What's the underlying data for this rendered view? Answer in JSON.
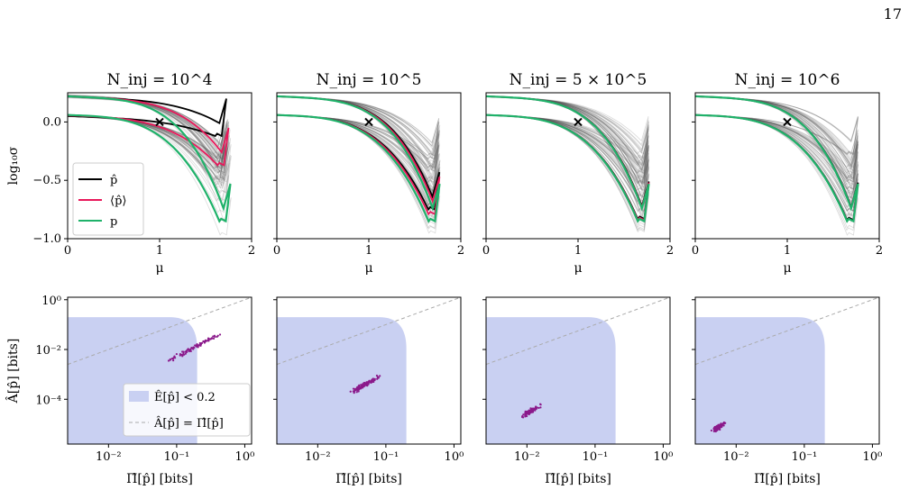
{
  "page_number": "17",
  "chart_data": [
    {
      "type": "line",
      "title": "N_inj = 10^4",
      "xlabel": "μ",
      "ylabel": "log₁₀σ",
      "xlim": [
        0,
        2
      ],
      "ylim": [
        -1.0,
        0.25
      ],
      "x_ticks": [
        "0",
        "1",
        "2"
      ],
      "y_ticks": [
        "0.0",
        "−0.5",
        "−1.0"
      ],
      "marker": {
        "x": 1.0,
        "y": 0.0,
        "symbol": "×"
      },
      "series": [
        {
          "name": "p̂",
          "color": "#000000",
          "spread": 0.55,
          "tipY": -0.15
        },
        {
          "name": "⟨p̂⟩",
          "color": "#e8185a",
          "spread": 0.8,
          "tipY": -0.4
        },
        {
          "name": "p",
          "color": "#1fb26a",
          "spread": 1.0,
          "tipY": -0.88
        }
      ],
      "legend": {
        "position": "lower-left"
      },
      "samples_spread": [
        0.3,
        1.1
      ]
    },
    {
      "type": "line",
      "title": "N_inj = 10^5",
      "xlabel": "μ",
      "xlim": [
        0,
        2
      ],
      "ylim": [
        -1.0,
        0.25
      ],
      "x_ticks": [
        "0",
        "1",
        "2"
      ],
      "marker": {
        "x": 1.0,
        "y": 0.0,
        "symbol": "×"
      },
      "series": [
        {
          "color": "#000000",
          "spread": 0.97,
          "tipY": -0.78
        },
        {
          "color": "#e8185a",
          "spread": 0.99,
          "tipY": -0.82
        },
        {
          "color": "#1fb26a",
          "spread": 1.0,
          "tipY": -0.88
        }
      ],
      "samples_spread": [
        0.85,
        1.05
      ]
    },
    {
      "type": "line",
      "title": "N_inj = 5 × 10^5",
      "xlabel": "μ",
      "xlim": [
        0,
        2
      ],
      "ylim": [
        -1.0,
        0.25
      ],
      "x_ticks": [
        "0",
        "1",
        "2"
      ],
      "marker": {
        "x": 1.0,
        "y": 0.0,
        "symbol": "×"
      },
      "series": [
        {
          "color": "#000000",
          "spread": 0.995,
          "tipY": -0.86
        },
        {
          "color": "#e8185a",
          "spread": 1.0,
          "tipY": -0.87
        },
        {
          "color": "#1fb26a",
          "spread": 1.0,
          "tipY": -0.88
        }
      ],
      "samples_spread": [
        0.93,
        1.03
      ]
    },
    {
      "type": "line",
      "title": "N_inj = 10^6",
      "xlabel": "μ",
      "xlim": [
        0,
        2
      ],
      "ylim": [
        -1.0,
        0.25
      ],
      "x_ticks": [
        "0",
        "1",
        "2"
      ],
      "marker": {
        "x": 1.0,
        "y": 0.0,
        "symbol": "×"
      },
      "series": [
        {
          "color": "#000000",
          "spread": 1.0,
          "tipY": -0.87
        },
        {
          "color": "#e8185a",
          "spread": 1.0,
          "tipY": -0.88
        },
        {
          "color": "#1fb26a",
          "spread": 1.0,
          "tipY": -0.88
        }
      ],
      "samples_spread": [
        0.96,
        1.02
      ]
    },
    {
      "type": "scatter",
      "xlabel": "Π̂[p̂] [bits]",
      "ylabel": "Â[p̂] [bits]",
      "xlim_log10": [
        -2.6,
        0.1
      ],
      "ylim_log10": [
        -5.8,
        0.1
      ],
      "x_ticks": [
        "10⁻²",
        "10⁻¹",
        "10⁰"
      ],
      "y_ticks": [
        "10⁰",
        "10⁻²",
        "10⁻⁴"
      ],
      "region": {
        "label": "Ê[p̂] < 0.2",
        "color": "#c9d0f2",
        "bound": 0.2
      },
      "diagonal": {
        "label": "Â[p̂] = Π̂[p̂]"
      },
      "points_color": "#8b1a8b",
      "cluster": {
        "center_x": 0.18,
        "center_y": 0.012,
        "log_spread": 0.55,
        "slope": 1.4
      },
      "legend": {
        "position": "lower-right"
      }
    },
    {
      "type": "scatter",
      "xlabel": "Π̂[p̂] [bits]",
      "xlim_log10": [
        -2.6,
        0.1
      ],
      "ylim_log10": [
        -5.8,
        0.1
      ],
      "x_ticks": [
        "10⁻²",
        "10⁻¹",
        "10⁰"
      ],
      "region": {
        "color": "#c9d0f2",
        "bound": 0.2
      },
      "points_color": "#8b1a8b",
      "cluster": {
        "center_x": 0.05,
        "center_y": 0.0004,
        "log_spread": 0.35,
        "slope": 1.6
      }
    },
    {
      "type": "scatter",
      "xlabel": "Π̂[p̂] [bits]",
      "xlim_log10": [
        -2.6,
        0.1
      ],
      "ylim_log10": [
        -5.8,
        0.1
      ],
      "x_ticks": [
        "10⁻²",
        "10⁻¹",
        "10⁰"
      ],
      "region": {
        "color": "#c9d0f2",
        "bound": 0.2
      },
      "points_color": "#8b1a8b",
      "cluster": {
        "center_x": 0.011,
        "center_y": 3.2e-05,
        "log_spread": 0.18,
        "slope": 1.8
      }
    },
    {
      "type": "scatter",
      "xlabel": "Π̂[p̂] [bits]",
      "xlim_log10": [
        -2.6,
        0.1
      ],
      "ylim_log10": [
        -5.8,
        0.1
      ],
      "x_ticks": [
        "10⁻²",
        "10⁻¹",
        "10⁰"
      ],
      "region": {
        "color": "#c9d0f2",
        "bound": 0.2
      },
      "points_color": "#8b1a8b",
      "cluster": {
        "center_x": 0.0055,
        "center_y": 7.5e-06,
        "log_spread": 0.12,
        "slope": 1.8
      }
    }
  ]
}
